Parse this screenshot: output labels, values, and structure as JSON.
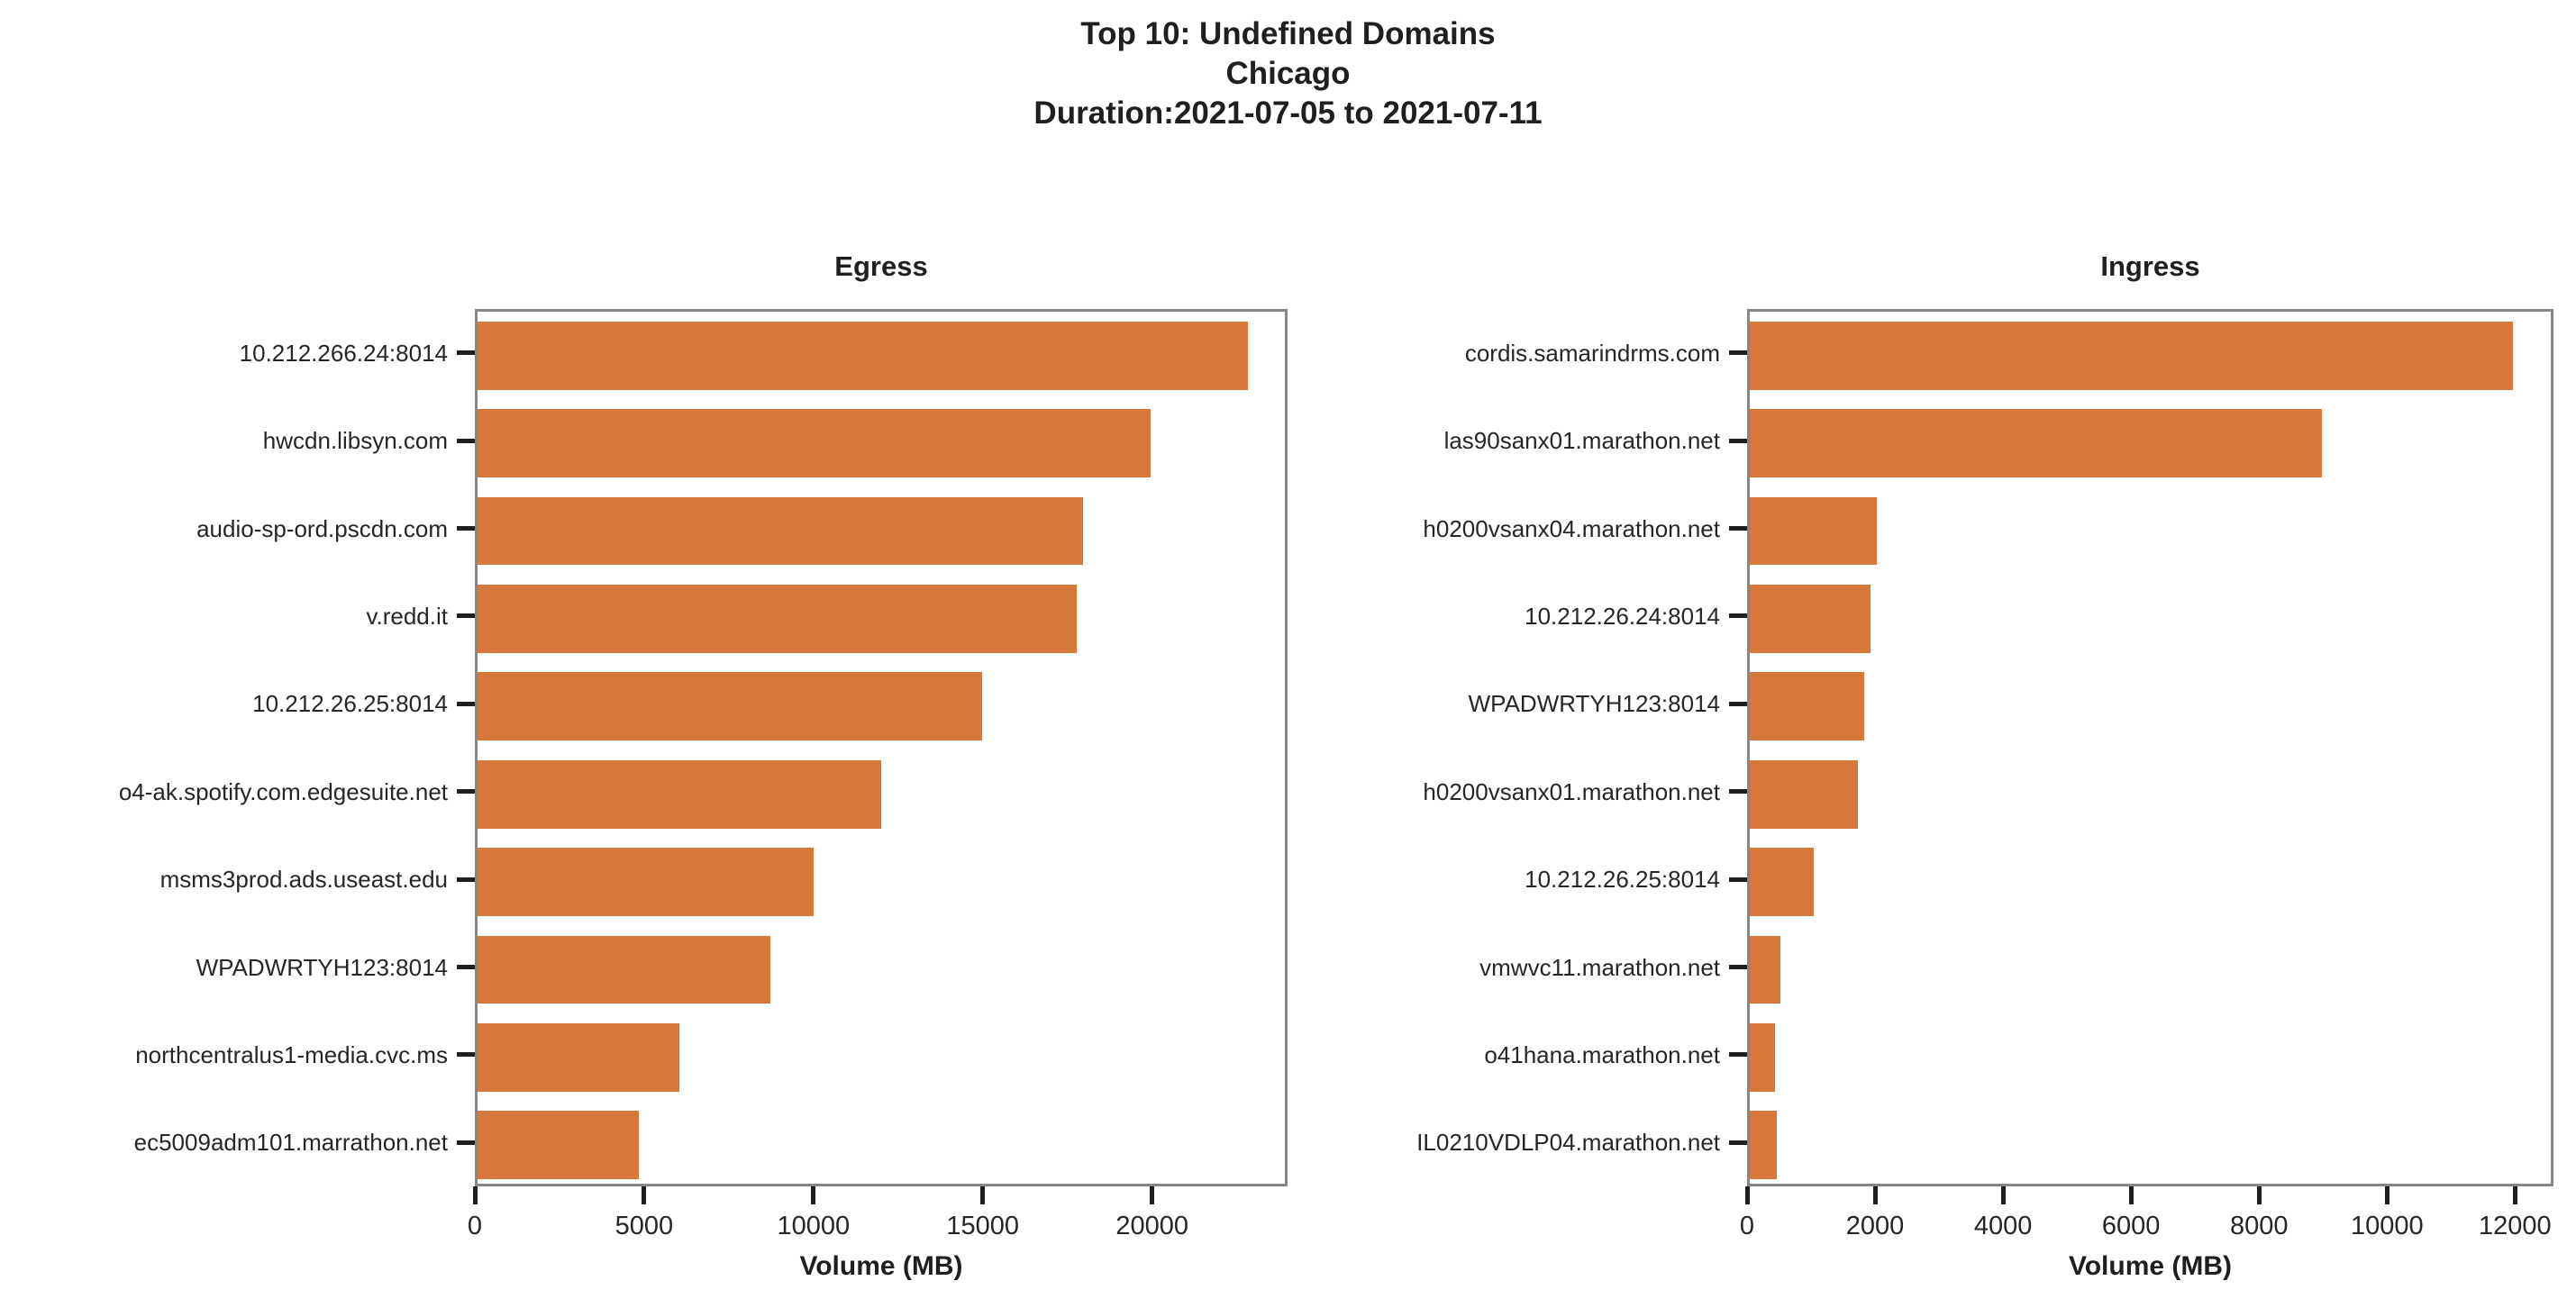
{
  "figure_title": {
    "line1": "Top 10: Undefined Domains",
    "line2": "Chicago",
    "line3": "Duration:2021-07-05 to 2021-07-11"
  },
  "colors": {
    "bar": "#d6783a",
    "spine": "#868686",
    "tick": "#1f1f1f",
    "text": "#262626"
  },
  "chart_data": [
    {
      "type": "bar",
      "orientation": "horizontal",
      "title": "Egress",
      "xlabel": "Volume (MB)",
      "categories": [
        "10.212.266.24:8014",
        "hwcdn.libsyn.com",
        "audio-sp-ord.pscdn.com",
        "v.redd.it",
        "10.212.26.25:8014",
        "o4-ak.spotify.com.edgesuite.net",
        "msms3prod.ads.useast.edu",
        "WPADWRTYH123:8014",
        "northcentralus1-media.cvc.ms",
        "ec5009adm101.marrathon.net"
      ],
      "values": [
        22900,
        20000,
        18000,
        17800,
        15000,
        12000,
        10000,
        8700,
        6000,
        4800
      ],
      "xlim": [
        0,
        24000
      ],
      "xticks": [
        0,
        5000,
        10000,
        15000,
        20000
      ],
      "grid": false,
      "legend": null
    },
    {
      "type": "bar",
      "orientation": "horizontal",
      "title": "Ingress",
      "xlabel": "Volume (MB)",
      "categories": [
        "cordis.samarindrms.com",
        "las90sanx01.marathon.net",
        "h0200vsanx04.marathon.net",
        "10.212.26.24:8014",
        "WPADWRTYH123:8014",
        "h0200vsanx01.marathon.net",
        "10.212.26.25:8014",
        "vmwvc11.marathon.net",
        "o41hana.marathon.net",
        "IL0210VDLP04.marathon.net"
      ],
      "values": [
        12000,
        9000,
        2000,
        1900,
        1800,
        1700,
        1000,
        480,
        400,
        420
      ],
      "xlim": [
        0,
        12600
      ],
      "xticks": [
        0,
        2000,
        4000,
        6000,
        8000,
        10000,
        12000
      ],
      "grid": false,
      "legend": null
    }
  ]
}
